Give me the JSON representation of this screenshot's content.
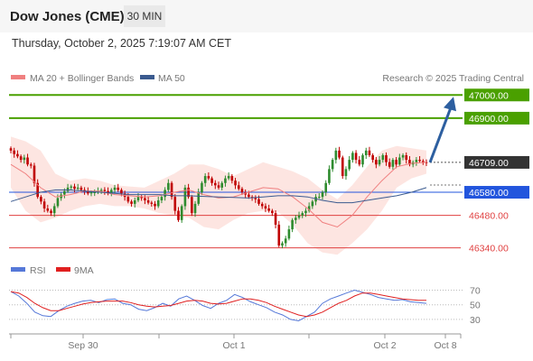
{
  "header": {
    "title": "Dow Jones (CME)",
    "timeframe": "30 MIN",
    "datetime": "Thursday, October 2, 2025 7:19:07 AM CET"
  },
  "legend": {
    "ma20_bb": "MA 20 + Bollinger Bands",
    "ma50": "MA 50",
    "credit": "Research © 2025 Trading Central",
    "rsi": "RSI",
    "rsi_ma": "9MA"
  },
  "colors": {
    "up": "#2e8b2e",
    "down": "#c00000",
    "ma20": "#f08080",
    "bb_fill": "#fde0dc",
    "ma50": "#3b5b8f",
    "target": "#4aa000",
    "pivot": "#2255dd",
    "support": "#e04040",
    "arrow": "#2d5fa0",
    "rsi": "#5578d8",
    "rsi_ma": "#e02020"
  },
  "chart_data": [
    {
      "type": "candlestick",
      "y_range": [
        46280,
        47040
      ],
      "x_ticks": [
        "Sep 30",
        "Oct 1",
        "Oct 2",
        "Oct 8"
      ],
      "levels": [
        {
          "name": "resistance-2",
          "value": 47000.0,
          "label": "47000.00",
          "kind": "target"
        },
        {
          "name": "resistance-1",
          "value": 46900.0,
          "label": "46900.00",
          "kind": "target"
        },
        {
          "name": "last-price",
          "value": 46709.0,
          "label": "46709.00",
          "kind": "last"
        },
        {
          "name": "pivot",
          "value": 46580.0,
          "label": "46580.00",
          "kind": "pivot"
        },
        {
          "name": "support-1",
          "value": 46480.0,
          "label": "46480.00",
          "kind": "support"
        },
        {
          "name": "support-2",
          "value": 46340.0,
          "label": "46340.00",
          "kind": "support"
        }
      ],
      "closes": [
        46760,
        46745,
        46735,
        46720,
        46730,
        46700,
        46695,
        46620,
        46560,
        46540,
        46510,
        46500,
        46490,
        46520,
        46555,
        46570,
        46585,
        46600,
        46605,
        46595,
        46600,
        46590,
        46585,
        46575,
        46580,
        46580,
        46585,
        46590,
        46585,
        46575,
        46590,
        46600,
        46590,
        46575,
        46560,
        46540,
        46530,
        46545,
        46560,
        46555,
        46545,
        46535,
        46530,
        46520,
        46545,
        46560,
        46590,
        46620,
        46560,
        46500,
        46460,
        46520,
        46600,
        46560,
        46490,
        46530,
        46580,
        46620,
        46650,
        46640,
        46620,
        46610,
        46600,
        46620,
        46640,
        46650,
        46630,
        46610,
        46595,
        46580,
        46570,
        46560,
        46555,
        46550,
        46530,
        46520,
        46510,
        46500,
        46490,
        46440,
        46350,
        46360,
        46380,
        46420,
        46460,
        46470,
        46480,
        46490,
        46500,
        46520,
        46540,
        46560,
        46560,
        46580,
        46620,
        46680,
        46720,
        46760,
        46730,
        46650,
        46680,
        46720,
        46750,
        46720,
        46700,
        46740,
        46760,
        46740,
        46720,
        46700,
        46720,
        46740,
        46710,
        46690,
        46720,
        46700,
        46730,
        46740,
        46720,
        46700,
        46710,
        46720,
        46715,
        46710,
        46709
      ],
      "ma20_bb": {
        "mid": [
          46700,
          46660,
          46600,
          46560,
          46570,
          46585,
          46585,
          46570,
          46565,
          46560,
          46565,
          46580,
          46590,
          46570,
          46555,
          46560,
          46580,
          46600,
          46595,
          46560,
          46510,
          46450,
          46430,
          46480,
          46560,
          46630,
          46690,
          46705,
          46710
        ],
        "upper": [
          46820,
          46800,
          46760,
          46660,
          46630,
          46640,
          46630,
          46610,
          46605,
          46600,
          46630,
          46660,
          46700,
          46700,
          46680,
          46650,
          46680,
          46710,
          46690,
          46670,
          46640,
          46590,
          46550,
          46610,
          46690,
          46760,
          46780,
          46770,
          46760
        ],
        "lower": [
          46600,
          46500,
          46450,
          46470,
          46500,
          46520,
          46530,
          46520,
          46520,
          46510,
          46490,
          46480,
          46470,
          46430,
          46420,
          46460,
          46490,
          46500,
          46495,
          46440,
          46360,
          46320,
          46310,
          46360,
          46420,
          46500,
          46600,
          46640,
          46660
        ]
      },
      "ma50": [
        46540,
        46560,
        46580,
        46590,
        46590,
        46585,
        46580,
        46575,
        46570,
        46570,
        46570,
        46565,
        46565,
        46562,
        46560,
        46558,
        46555,
        46560,
        46565,
        46565,
        46560,
        46545,
        46535,
        46535,
        46545,
        46555,
        46565,
        46580,
        46600
      ]
    },
    {
      "type": "line",
      "title": "RSI",
      "y_ticks": [
        70,
        50,
        30
      ],
      "y_range": [
        20,
        78
      ],
      "rsi": [
        68,
        62,
        52,
        40,
        35,
        34,
        42,
        48,
        52,
        55,
        56,
        53,
        57,
        58,
        52,
        50,
        44,
        42,
        46,
        52,
        48,
        58,
        62,
        56,
        49,
        45,
        52,
        56,
        64,
        60,
        54,
        50,
        46,
        40,
        36,
        30,
        28,
        34,
        40,
        52,
        58,
        62,
        66,
        70,
        67,
        64,
        60,
        58,
        56,
        57,
        54,
        53,
        52
      ],
      "rsi_ma": [
        68,
        66,
        60,
        52,
        46,
        42,
        42,
        45,
        48,
        51,
        53,
        54,
        55,
        55,
        55,
        53,
        50,
        48,
        47,
        48,
        49,
        52,
        55,
        56,
        55,
        52,
        51,
        52,
        55,
        58,
        58,
        56,
        53,
        48,
        44,
        40,
        36,
        34,
        36,
        40,
        46,
        52,
        56,
        62,
        66,
        66,
        64,
        62,
        60,
        58,
        57,
        56,
        56
      ]
    }
  ]
}
